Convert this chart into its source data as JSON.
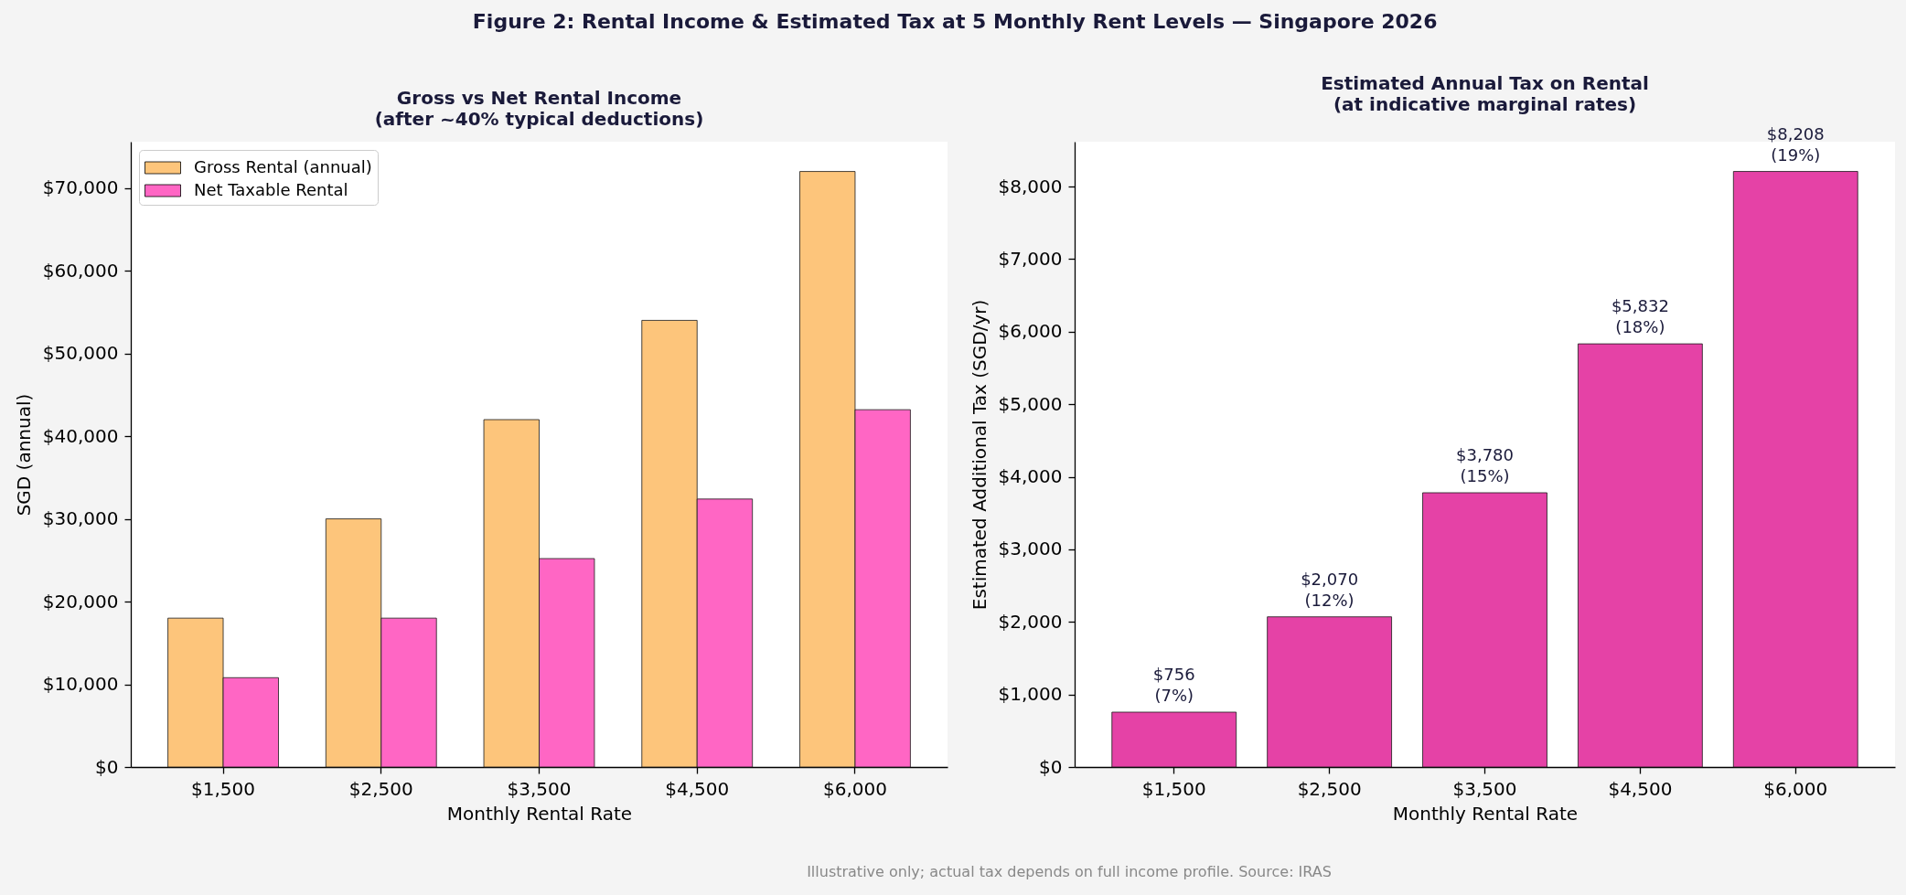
{
  "chart_data": [
    {
      "type": "other",
      "title": "Figure 2: Rental Income & Estimated Tax at 5 Monthly Rent Levels — Singapore 2026",
      "annotations": [
        "Illustrative only; actual tax depends on full income profile. Source: IRAS"
      ]
    },
    {
      "type": "bar",
      "title": "Gross vs Net Rental Income\n(after ~40% typical deductions)",
      "categories": [
        "$1,500",
        "$2,500",
        "$3,500",
        "$4,500",
        "$6,000"
      ],
      "series": [
        {
          "name": "Gross Rental (annual)",
          "color": "#fdc57b",
          "values": [
            18000,
            30000,
            42000,
            54000,
            72000
          ]
        },
        {
          "name": "Net Taxable Rental",
          "color": "#ff66c4",
          "values": [
            10800,
            18000,
            25200,
            32400,
            43200
          ]
        }
      ],
      "xlabel": "Monthly Rental Rate",
      "ylabel": "SGD (annual)",
      "ylim": [
        0,
        75600
      ],
      "yticks": [
        {
          "value": 0,
          "label": "$0"
        },
        {
          "value": 10000,
          "label": "$10,000"
        },
        {
          "value": 20000,
          "label": "$20,000"
        },
        {
          "value": 30000,
          "label": "$30,000"
        },
        {
          "value": 40000,
          "label": "$40,000"
        },
        {
          "value": 50000,
          "label": "$50,000"
        },
        {
          "value": 60000,
          "label": "$60,000"
        },
        {
          "value": 70000,
          "label": "$70,000"
        }
      ],
      "legend": "top left",
      "grid": false
    },
    {
      "type": "bar",
      "title": "Estimated Annual Tax on Rental\n(at indicative marginal rates)",
      "categories": [
        "$1,500",
        "$2,500",
        "$3,500",
        "$4,500",
        "$6,000"
      ],
      "values": [
        756,
        2070,
        3780,
        5832,
        8208
      ],
      "color": "#e542a6",
      "value_labels": [
        "$756\n(7%)",
        "$2,070\n(12%)",
        "$3,780\n(15%)",
        "$5,832\n(18%)",
        "$8,208\n(19%)"
      ],
      "xlabel": "Monthly Rental Rate",
      "ylabel": "Estimated Additional Tax (SGD/yr)",
      "ylim": [
        0,
        8618
      ],
      "yticks": [
        {
          "value": 0,
          "label": "$0"
        },
        {
          "value": 1000,
          "label": "$1,000"
        },
        {
          "value": 2000,
          "label": "$2,000"
        },
        {
          "value": 3000,
          "label": "$3,000"
        },
        {
          "value": 4000,
          "label": "$4,000"
        },
        {
          "value": 5000,
          "label": "$5,000"
        },
        {
          "value": 6000,
          "label": "$6,000"
        },
        {
          "value": 7000,
          "label": "$7,000"
        },
        {
          "value": 8000,
          "label": "$8,000"
        }
      ],
      "grid": false
    }
  ]
}
